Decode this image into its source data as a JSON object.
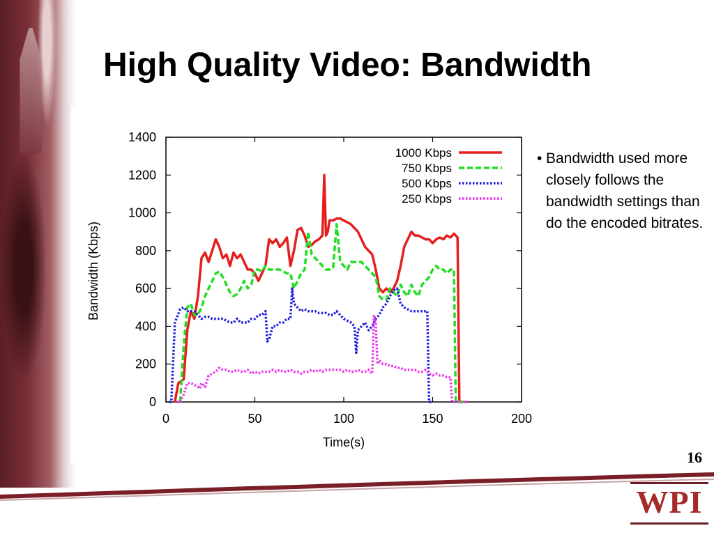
{
  "slide": {
    "title": "High Quality Video: Bandwidth",
    "bullet": "Bandwidth used more closely follows the bandwidth settings than do the encoded bitrates.",
    "page_number": "16",
    "logo_text": "WPI"
  },
  "colors": {
    "accent": "#7a1f27"
  },
  "chart_data": {
    "type": "line",
    "title": "",
    "xlabel": "Time(s)",
    "ylabel": "Bandwidth (Kbps)",
    "xlim": [
      0,
      200
    ],
    "ylim": [
      0,
      1400
    ],
    "xticks": [
      0,
      50,
      100,
      150,
      200
    ],
    "yticks": [
      0,
      200,
      400,
      600,
      800,
      1000,
      1200,
      1400
    ],
    "grid": false,
    "legend": "top-right",
    "series": [
      {
        "name": "1000 Kbps",
        "color": "#e51e1e",
        "dash": "solid",
        "x": [
          5,
          7,
          10,
          12,
          14,
          16,
          18,
          20,
          22,
          24,
          26,
          28,
          30,
          32,
          34,
          36,
          38,
          40,
          42,
          44,
          46,
          48,
          50,
          52,
          54,
          56,
          58,
          60,
          62,
          64,
          66,
          68,
          70,
          72,
          74,
          76,
          78,
          80,
          82,
          84,
          86,
          88,
          89,
          90,
          91,
          92,
          94,
          96,
          98,
          100,
          102,
          104,
          106,
          108,
          110,
          112,
          114,
          116,
          118,
          120,
          122,
          124,
          126,
          128,
          130,
          132,
          134,
          136,
          138,
          140,
          142,
          144,
          146,
          148,
          150,
          152,
          154,
          156,
          158,
          160,
          162,
          163,
          164,
          165,
          168
        ],
        "y": [
          0,
          100,
          120,
          380,
          480,
          440,
          560,
          760,
          790,
          740,
          800,
          860,
          820,
          760,
          780,
          720,
          790,
          760,
          780,
          740,
          700,
          700,
          680,
          640,
          680,
          720,
          860,
          840,
          860,
          820,
          840,
          870,
          720,
          800,
          910,
          920,
          880,
          820,
          830,
          850,
          860,
          880,
          1200,
          880,
          900,
          960,
          960,
          970,
          970,
          960,
          950,
          940,
          920,
          900,
          860,
          820,
          800,
          780,
          700,
          600,
          580,
          600,
          580,
          600,
          640,
          720,
          820,
          860,
          900,
          880,
          880,
          870,
          860,
          860,
          840,
          860,
          870,
          860,
          880,
          870,
          890,
          880,
          870,
          0,
          0
        ]
      },
      {
        "name": "750 Kbps",
        "color": "#22dd22",
        "dash": "dashed",
        "x": [
          8,
          10,
          12,
          14,
          16,
          18,
          20,
          22,
          24,
          26,
          28,
          30,
          32,
          34,
          36,
          38,
          40,
          42,
          44,
          46,
          48,
          50,
          52,
          54,
          56,
          58,
          60,
          62,
          64,
          66,
          68,
          70,
          72,
          74,
          76,
          78,
          80,
          82,
          84,
          86,
          88,
          90,
          92,
          94,
          96,
          98,
          100,
          102,
          104,
          106,
          108,
          110,
          112,
          114,
          116,
          118,
          120,
          122,
          124,
          126,
          128,
          130,
          132,
          134,
          136,
          138,
          140,
          142,
          144,
          146,
          148,
          150,
          152,
          154,
          156,
          158,
          160,
          162,
          163,
          164,
          168
        ],
        "y": [
          0,
          300,
          500,
          520,
          460,
          460,
          500,
          560,
          600,
          640,
          680,
          690,
          660,
          620,
          580,
          560,
          570,
          600,
          640,
          600,
          620,
          700,
          700,
          690,
          720,
          700,
          700,
          700,
          700,
          690,
          680,
          680,
          600,
          640,
          680,
          700,
          900,
          780,
          760,
          740,
          720,
          700,
          700,
          710,
          940,
          740,
          720,
          700,
          740,
          740,
          740,
          740,
          720,
          700,
          680,
          660,
          560,
          540,
          540,
          600,
          580,
          560,
          620,
          580,
          560,
          620,
          580,
          560,
          620,
          640,
          660,
          700,
          720,
          700,
          700,
          680,
          700,
          700,
          0,
          0,
          0
        ]
      },
      {
        "name": "500 Kbps",
        "color": "#1a1ae0",
        "dash": "dotted",
        "x": [
          2,
          3,
          5,
          8,
          10,
          12,
          14,
          16,
          18,
          20,
          22,
          24,
          26,
          28,
          30,
          32,
          34,
          36,
          38,
          40,
          42,
          44,
          46,
          48,
          50,
          52,
          54,
          56,
          57,
          58,
          60,
          62,
          64,
          66,
          68,
          70,
          71,
          72,
          74,
          76,
          78,
          80,
          82,
          84,
          86,
          88,
          90,
          92,
          94,
          96,
          98,
          100,
          102,
          104,
          106,
          107,
          108,
          110,
          112,
          114,
          116,
          118,
          120,
          122,
          124,
          126,
          128,
          130,
          132,
          134,
          136,
          138,
          140,
          142,
          144,
          146,
          147,
          148,
          150
        ],
        "y": [
          0,
          0,
          420,
          490,
          500,
          480,
          480,
          480,
          460,
          440,
          450,
          450,
          440,
          440,
          440,
          440,
          430,
          420,
          420,
          440,
          420,
          420,
          420,
          440,
          440,
          460,
          460,
          480,
          320,
          330,
          400,
          400,
          420,
          420,
          440,
          440,
          600,
          520,
          500,
          480,
          490,
          480,
          480,
          480,
          470,
          470,
          470,
          460,
          460,
          480,
          460,
          440,
          430,
          420,
          400,
          260,
          380,
          400,
          420,
          380,
          400,
          440,
          460,
          500,
          520,
          560,
          590,
          600,
          520,
          500,
          490,
          480,
          480,
          480,
          480,
          480,
          480,
          0,
          0
        ]
      },
      {
        "name": "250 Kbps",
        "color": "#ee33ee",
        "dash": "dotted",
        "x": [
          6,
          8,
          10,
          12,
          14,
          16,
          18,
          19,
          20,
          22,
          24,
          26,
          28,
          30,
          32,
          34,
          36,
          38,
          40,
          42,
          44,
          46,
          48,
          50,
          52,
          54,
          56,
          58,
          60,
          62,
          64,
          66,
          68,
          70,
          72,
          74,
          76,
          78,
          80,
          82,
          84,
          86,
          88,
          90,
          92,
          94,
          96,
          98,
          100,
          102,
          104,
          106,
          108,
          110,
          112,
          114,
          116,
          117,
          118,
          119,
          120,
          122,
          124,
          126,
          128,
          130,
          132,
          134,
          136,
          138,
          140,
          142,
          144,
          146,
          148,
          150,
          152,
          154,
          156,
          158,
          160,
          161,
          162,
          170
        ],
        "y": [
          0,
          0,
          40,
          100,
          100,
          90,
          80,
          70,
          100,
          80,
          140,
          150,
          160,
          180,
          170,
          170,
          160,
          160,
          170,
          160,
          160,
          170,
          150,
          160,
          150,
          160,
          160,
          160,
          170,
          160,
          170,
          160,
          160,
          170,
          160,
          160,
          150,
          160,
          160,
          170,
          160,
          170,
          160,
          170,
          170,
          170,
          170,
          170,
          160,
          170,
          160,
          160,
          170,
          160,
          160,
          170,
          150,
          460,
          420,
          200,
          220,
          200,
          200,
          190,
          190,
          180,
          180,
          170,
          170,
          170,
          170,
          160,
          160,
          170,
          150,
          140,
          150,
          140,
          140,
          130,
          130,
          0,
          0,
          0
        ]
      }
    ]
  }
}
